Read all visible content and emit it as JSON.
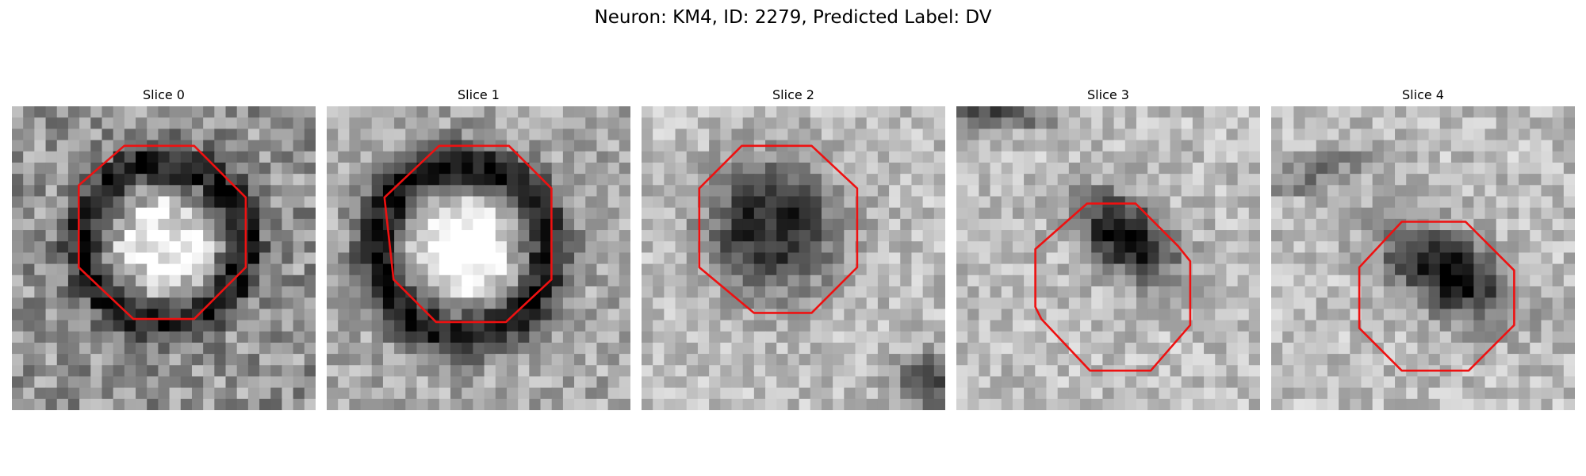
{
  "figure": {
    "title": "Neuron: KM4, ID: 2279, Predicted Label: DV"
  },
  "colors": {
    "outline": "#ee1111",
    "background": "#ffffff"
  },
  "panels": [
    {
      "title": "Slice 0"
    },
    {
      "title": "Slice 1"
    },
    {
      "title": "Slice 2"
    },
    {
      "title": "Slice 3"
    },
    {
      "title": "Slice 4"
    }
  ]
}
